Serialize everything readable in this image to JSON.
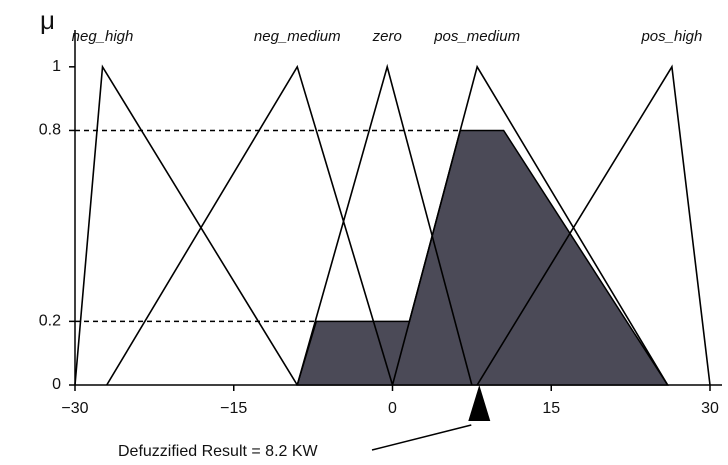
{
  "chart_data": {
    "type": "line",
    "ylabel": "μ",
    "xlim": [
      -30,
      30
    ],
    "ylim": [
      0,
      1.1
    ],
    "xticks": [
      {
        "value": -30,
        "label": "−30"
      },
      {
        "value": -15,
        "label": "−15"
      },
      0,
      15,
      30
    ],
    "yticks": [
      0,
      0.2,
      0.8,
      1
    ],
    "series": [
      {
        "name": "neg_high",
        "color": "#000000",
        "x": [
          -30,
          -27.4,
          -9
        ],
        "values": [
          0,
          1,
          0
        ]
      },
      {
        "name": "neg_medium",
        "color": "#000000",
        "x": [
          -27,
          -9,
          0
        ],
        "values": [
          0,
          1,
          0
        ]
      },
      {
        "name": "zero",
        "color": "#000000",
        "x": [
          -9,
          -0.5,
          7.5
        ],
        "values": [
          0,
          1,
          0
        ]
      },
      {
        "name": "pos_medium",
        "color": "#000000",
        "x": [
          0,
          8,
          26
        ],
        "values": [
          0,
          1,
          0
        ]
      },
      {
        "name": "pos_high",
        "color": "#000000",
        "x": [
          8,
          26.4,
          30
        ],
        "values": [
          0,
          1,
          0
        ]
      }
    ],
    "area": {
      "color": "#4b4a57",
      "x": [
        -9,
        -7.2,
        1.6,
        6.4,
        10.5,
        26
      ],
      "values": [
        0,
        0.2,
        0.2,
        0.8,
        0.8,
        0
      ]
    },
    "result": {
      "value": 8.2,
      "label": "Defuzzified Result = 8.2 KW"
    }
  }
}
